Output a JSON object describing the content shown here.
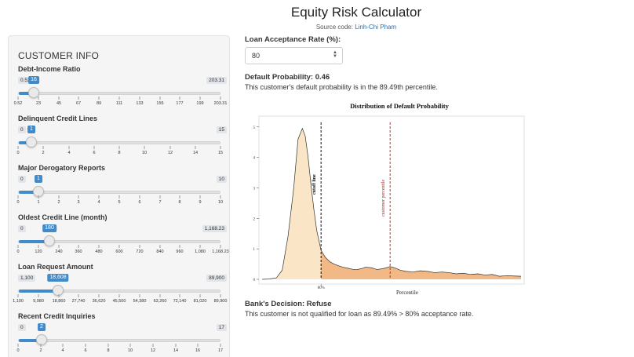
{
  "header": {
    "title": "Equity Risk Calculator",
    "source_prefix": "Source code: ",
    "source_author": "Linh-Chi Pham"
  },
  "sidebar": {
    "heading": "CUSTOMER INFO",
    "sliders": [
      {
        "label": "Debt-Income Ratio",
        "min": "0.52",
        "max": "203.31",
        "value": "16",
        "fraction": 0.076,
        "ticks": [
          "0.52",
          "23",
          "45",
          "67",
          "89",
          "111",
          "133",
          "155",
          "177",
          "199",
          "203.31"
        ]
      },
      {
        "label": "Delinquent Credit Lines",
        "min": "0",
        "max": "15",
        "value": "1",
        "fraction": 0.067,
        "ticks": [
          "0",
          "2",
          "4",
          "6",
          "8",
          "10",
          "12",
          "14",
          "15"
        ]
      },
      {
        "label": "Major Derogatory Reports",
        "min": "0",
        "max": "10",
        "value": "1",
        "fraction": 0.1,
        "ticks": [
          "0",
          "1",
          "2",
          "3",
          "4",
          "5",
          "6",
          "7",
          "8",
          "9",
          "10"
        ]
      },
      {
        "label": "Oldest Credit Line (month)",
        "min": "0",
        "max": "1,168.23",
        "value": "180",
        "fraction": 0.154,
        "ticks": [
          "0",
          "120",
          "240",
          "360",
          "480",
          "600",
          "720",
          "840",
          "960",
          "1,080",
          "1,168.23"
        ]
      },
      {
        "label": "Loan Request Amount",
        "min": "1,100",
        "max": "89,900",
        "value": "18,608",
        "fraction": 0.197,
        "ticks": [
          "1,100",
          "9,980",
          "18,860",
          "27,740",
          "36,620",
          "45,500",
          "54,380",
          "63,260",
          "72,140",
          "81,020",
          "89,900"
        ]
      },
      {
        "label": "Recent Credit Inquiries",
        "min": "0",
        "max": "17",
        "value": "2",
        "fraction": 0.118,
        "ticks": [
          "0",
          "2",
          "4",
          "6",
          "8",
          "10",
          "12",
          "14",
          "16",
          "17"
        ]
      }
    ]
  },
  "main": {
    "acceptance_label": "Loan Acceptance Rate (%):",
    "acceptance_value": "80",
    "probability_title": "Default Probability: 0.46",
    "probability_text": "This customer's default probability is in the 89.49th percentile.",
    "decision_title": "Bank's Decision: Refuse",
    "decision_text": "This customer is not qualified for loan as 89.49% > 80% acceptance rate."
  },
  "chart_data": {
    "type": "area",
    "title": "Distribution of Default Probability",
    "xlabel": "Percentile",
    "ylabel": "",
    "x_tick_label": "80%",
    "ylim": [
      0,
      5.2
    ],
    "y_ticks": [
      "0",
      "1",
      "2",
      "3",
      "4",
      "5"
    ],
    "cutoff_label": "cutoff line",
    "customer_label": "customer percentile",
    "cutoff_x": 0.41,
    "customer_x": 0.89,
    "x": [
      0.0,
      0.05,
      0.1,
      0.14,
      0.18,
      0.22,
      0.25,
      0.28,
      0.3,
      0.32,
      0.34,
      0.36,
      0.38,
      0.41,
      0.44,
      0.47,
      0.5,
      0.53,
      0.56,
      0.6,
      0.63,
      0.66,
      0.69,
      0.72,
      0.76,
      0.8,
      0.85,
      0.89,
      0.92,
      0.96,
      1.0,
      1.05,
      1.1,
      1.15,
      1.2,
      1.25,
      1.3,
      1.35,
      1.4,
      1.45,
      1.5,
      1.55,
      1.6,
      1.65,
      1.7,
      1.8
    ],
    "y": [
      0.0,
      0.01,
      0.05,
      0.3,
      1.4,
      3.0,
      4.6,
      4.95,
      4.7,
      4.0,
      3.1,
      2.3,
      1.6,
      0.95,
      0.72,
      0.58,
      0.5,
      0.45,
      0.4,
      0.36,
      0.33,
      0.32,
      0.35,
      0.4,
      0.38,
      0.32,
      0.36,
      0.42,
      0.38,
      0.3,
      0.26,
      0.24,
      0.28,
      0.26,
      0.22,
      0.24,
      0.22,
      0.18,
      0.2,
      0.16,
      0.18,
      0.14,
      0.16,
      0.1,
      0.12,
      0.1
    ],
    "colors": {
      "below_cutoff": "#fae5c6",
      "above_cutoff": "#f2b986",
      "line": "#333333",
      "cutoff": "#111111",
      "customer": "#b22222"
    }
  }
}
